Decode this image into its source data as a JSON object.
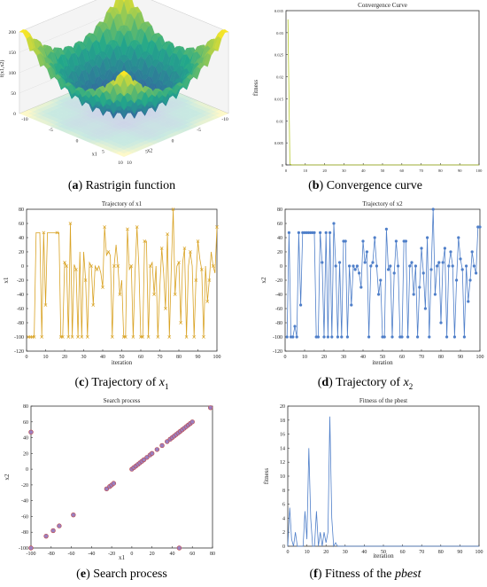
{
  "captions": {
    "a": {
      "letter": "a",
      "text": "Rastrigin function"
    },
    "b": {
      "letter": "b",
      "text": "Convergence curve"
    },
    "c": {
      "letter": "c",
      "text": "Trajectory of ",
      "var": "x",
      "sub": "1"
    },
    "d": {
      "letter": "d",
      "text": "Trajectory of ",
      "var": "x",
      "sub": "2"
    },
    "e": {
      "letter": "e",
      "text": "Search process"
    },
    "f": {
      "letter": "f",
      "text": "Fitness of the ",
      "var": "pbest"
    }
  },
  "chart_data": [
    {
      "id": "a",
      "type": "surface",
      "title": "Rastrigin function",
      "xlabel": "x1",
      "ylabel": "x2",
      "zlabel": "f(x1,x2)",
      "xticks": [
        "-10",
        "-5",
        "0",
        "5",
        "10"
      ],
      "yticks": [
        "-10",
        "-5",
        "0",
        "5",
        "10"
      ],
      "zticks": [
        "0",
        "50",
        "100",
        "150",
        "200"
      ],
      "zlim": [
        0,
        200
      ],
      "colors": {
        "low": "#3b4fa8",
        "mid": "#22a88a",
        "high": "#f9e626"
      }
    },
    {
      "id": "b",
      "type": "line",
      "title": "Convergence Curve",
      "xlabel": "",
      "ylabel": "fitness",
      "xlim": [
        0,
        100
      ],
      "ylim": [
        0,
        0.035
      ],
      "xticks": [
        0,
        10,
        20,
        30,
        40,
        50,
        60,
        70,
        80,
        90,
        100
      ],
      "yticks": [
        0,
        0.005,
        0.01,
        0.015,
        0.02,
        0.025,
        0.03,
        0.035
      ],
      "color": "#b5c82a",
      "x": [
        1,
        2,
        3,
        4,
        6,
        10,
        20,
        40,
        60,
        80,
        100
      ],
      "y": [
        0.033,
        0.0002,
        0,
        0,
        0,
        0,
        0,
        0,
        0,
        0,
        0
      ]
    },
    {
      "id": "c",
      "type": "line",
      "title": "Trajectory of x1",
      "xlabel": "iteration",
      "ylabel": "x1",
      "xlim": [
        0,
        100
      ],
      "ylim": [
        -120,
        80
      ],
      "xticks": [
        0,
        10,
        20,
        30,
        40,
        50,
        60,
        70,
        80,
        90,
        100
      ],
      "yticks": [
        -120,
        -100,
        -80,
        -60,
        -40,
        -20,
        0,
        20,
        40,
        60,
        80
      ],
      "color": "#d9a325",
      "marker": "x",
      "x": [
        1,
        2,
        3,
        4,
        5,
        6,
        7,
        8,
        9,
        10,
        11,
        12,
        13,
        14,
        15,
        16,
        17,
        18,
        19,
        20,
        21,
        22,
        23,
        24,
        25,
        26,
        27,
        28,
        29,
        30,
        31,
        32,
        33,
        34,
        35,
        36,
        37,
        38,
        39,
        40,
        41,
        42,
        43,
        44,
        45,
        46,
        47,
        48,
        49,
        50,
        51,
        52,
        53,
        54,
        55,
        56,
        57,
        58,
        59,
        60,
        61,
        62,
        63,
        64,
        65,
        66,
        67,
        68,
        69,
        70,
        71,
        72,
        73,
        74,
        75,
        76,
        77,
        78,
        79,
        80,
        81,
        82,
        83,
        84,
        85,
        86,
        87,
        88,
        89,
        90,
        91,
        92,
        93,
        94,
        95,
        96,
        97,
        98,
        99,
        100
      ],
      "y": [
        -100,
        -100,
        -100,
        -100,
        47,
        47,
        47,
        -100,
        47,
        -55,
        47,
        47,
        47,
        47,
        47,
        47,
        47,
        -100,
        -100,
        5,
        0,
        -100,
        60,
        -100,
        2,
        -5,
        -100,
        20,
        -100,
        20,
        -20,
        -100,
        5,
        0,
        -55,
        0,
        -5,
        0,
        -10,
        -30,
        55,
        15,
        20,
        15,
        -100,
        0,
        30,
        0,
        -40,
        -20,
        -100,
        -100,
        52,
        -5,
        0,
        -100,
        -10,
        55,
        0,
        -100,
        -100,
        35,
        35,
        -100,
        0,
        5,
        -40,
        0,
        -100,
        -30,
        25,
        -10,
        -60,
        45,
        -100,
        -5,
        80,
        -40,
        0,
        5,
        -80,
        5,
        25,
        -100,
        0,
        20,
        0,
        -100,
        -20,
        35,
        10,
        -5,
        -100,
        0,
        -50,
        -20,
        20,
        0,
        -10,
        55
      ],
      "marker_idx": [
        0,
        1,
        2,
        3,
        7,
        8,
        9,
        15,
        17,
        18,
        19,
        20,
        21,
        22,
        23,
        25,
        26,
        28,
        30,
        31,
        33,
        34,
        36,
        39,
        40,
        42,
        44,
        45,
        47,
        48,
        50,
        51,
        52,
        54,
        55,
        57,
        59,
        60,
        61,
        63,
        64,
        66,
        68,
        70,
        72,
        73,
        74,
        76,
        77,
        79,
        80,
        82,
        83,
        85,
        87,
        88,
        89,
        91,
        92,
        94,
        95,
        97,
        99
      ]
    },
    {
      "id": "d",
      "type": "line",
      "title": "Trajectory of x2",
      "xlabel": "iteration",
      "ylabel": "x2",
      "xlim": [
        0,
        100
      ],
      "ylim": [
        -120,
        80
      ],
      "xticks": [
        0,
        10,
        20,
        30,
        40,
        50,
        60,
        70,
        80,
        90,
        100
      ],
      "yticks": [
        -120,
        -100,
        -80,
        -60,
        -40,
        -20,
        0,
        20,
        40,
        60,
        80
      ],
      "color": "#4f7fc9",
      "marker": "*",
      "x": [
        1,
        2,
        3,
        4,
        5,
        6,
        7,
        8,
        9,
        10,
        11,
        12,
        13,
        14,
        15,
        16,
        17,
        18,
        19,
        20,
        21,
        22,
        23,
        24,
        25,
        26,
        27,
        28,
        29,
        30,
        31,
        32,
        33,
        34,
        35,
        36,
        37,
        38,
        39,
        40,
        41,
        42,
        43,
        44,
        45,
        46,
        47,
        48,
        49,
        50,
        51,
        52,
        53,
        54,
        55,
        56,
        57,
        58,
        59,
        60,
        61,
        62,
        63,
        64,
        65,
        66,
        67,
        68,
        69,
        70,
        71,
        72,
        73,
        74,
        75,
        76,
        77,
        78,
        79,
        80,
        81,
        82,
        83,
        84,
        85,
        86,
        87,
        88,
        89,
        90,
        91,
        92,
        93,
        94,
        95,
        96,
        97,
        98,
        99,
        100
      ],
      "y": [
        -100,
        47,
        -100,
        -100,
        -85,
        -100,
        47,
        -55,
        47,
        47,
        47,
        47,
        47,
        47,
        47,
        -100,
        -100,
        47,
        5,
        -100,
        47,
        -100,
        47,
        -100,
        60,
        0,
        -100,
        5,
        -100,
        35,
        35,
        -100,
        0,
        -55,
        0,
        -5,
        0,
        -10,
        -30,
        35,
        5,
        20,
        -100,
        0,
        5,
        40,
        0,
        -40,
        -20,
        -100,
        -100,
        52,
        -5,
        0,
        -100,
        -10,
        35,
        0,
        -100,
        -100,
        35,
        35,
        -100,
        0,
        5,
        -40,
        0,
        -100,
        -30,
        25,
        -10,
        -60,
        40,
        -100,
        -5,
        80,
        -40,
        0,
        5,
        -80,
        5,
        25,
        -100,
        0,
        20,
        0,
        -100,
        -20,
        40,
        10,
        -5,
        -100,
        0,
        -50,
        -20,
        20,
        0,
        -10,
        55,
        55
      ],
      "marker_idx": [
        0,
        1,
        2,
        3,
        4,
        5,
        6,
        7,
        8,
        9,
        10,
        11,
        12,
        13,
        14,
        15,
        16,
        17,
        18,
        19,
        20,
        21,
        22,
        23,
        24,
        25,
        26,
        27,
        28,
        29,
        30,
        31,
        32,
        33,
        34,
        35,
        36,
        37,
        38,
        39,
        40,
        41,
        42,
        43,
        44,
        45,
        46,
        47,
        48,
        49,
        50,
        51,
        52,
        53,
        54,
        55,
        56,
        57,
        58,
        59,
        60,
        61,
        62,
        63,
        64,
        65,
        66,
        67,
        68,
        69,
        70,
        71,
        72,
        73,
        74,
        75,
        76,
        77,
        78,
        79,
        80,
        81,
        82,
        83,
        84,
        85,
        86,
        87,
        88,
        89,
        90,
        91,
        92,
        93,
        94,
        95,
        96,
        97,
        98,
        99
      ]
    },
    {
      "id": "e",
      "type": "scatter",
      "title": "Search process",
      "xlabel": "x1",
      "ylabel": "x2",
      "xlim": [
        -100,
        80
      ],
      "ylim": [
        -100,
        80
      ],
      "xticks": [
        -100,
        -80,
        -60,
        -40,
        -20,
        0,
        20,
        40,
        60,
        80
      ],
      "yticks": [
        -100,
        -80,
        -60,
        -40,
        -20,
        0,
        20,
        40,
        60,
        80
      ],
      "fill": "#9a7fc0",
      "stroke": "#c04a4a",
      "x": [
        -100,
        -100,
        -85,
        -78,
        -72,
        -58,
        -25,
        -22,
        -20,
        -18,
        0,
        2,
        4,
        6,
        8,
        10,
        12,
        15,
        18,
        20,
        25,
        30,
        35,
        38,
        40,
        42,
        44,
        46,
        48,
        50,
        52,
        54,
        56,
        58,
        60,
        47,
        78
      ],
      "y": [
        47,
        -100,
        -85,
        -78,
        -72,
        -58,
        -25,
        -22,
        -20,
        -18,
        0,
        2,
        4,
        6,
        8,
        10,
        12,
        15,
        18,
        20,
        25,
        30,
        35,
        38,
        40,
        42,
        44,
        46,
        48,
        50,
        52,
        54,
        56,
        58,
        60,
        -100,
        78
      ]
    },
    {
      "id": "f",
      "type": "line",
      "title": "Fitness of the pbest",
      "xlabel": "iteration",
      "ylabel": "fitness",
      "xlim": [
        0,
        100
      ],
      "ylim": [
        0,
        20
      ],
      "xticks": [
        0,
        10,
        20,
        30,
        40,
        50,
        60,
        70,
        80,
        90,
        100
      ],
      "yticks": [
        0,
        2,
        4,
        6,
        8,
        10,
        12,
        14,
        16,
        18,
        20
      ],
      "color": "#4f7fc9",
      "x": [
        0,
        1,
        2,
        3,
        4,
        5,
        6,
        7,
        8,
        9,
        10,
        11,
        12,
        13,
        14,
        15,
        16,
        17,
        18,
        19,
        20,
        21,
        22,
        23,
        24,
        25,
        26,
        27,
        28,
        29,
        30,
        40,
        60,
        80,
        100
      ],
      "y": [
        0,
        5.5,
        1,
        0,
        2,
        0,
        0,
        0,
        0,
        5,
        1,
        14,
        4,
        0,
        0,
        5,
        0,
        2,
        0,
        2,
        0.5,
        2,
        18.5,
        4,
        0,
        0.5,
        0,
        0,
        0,
        0,
        0,
        0,
        0,
        0,
        0
      ]
    }
  ]
}
